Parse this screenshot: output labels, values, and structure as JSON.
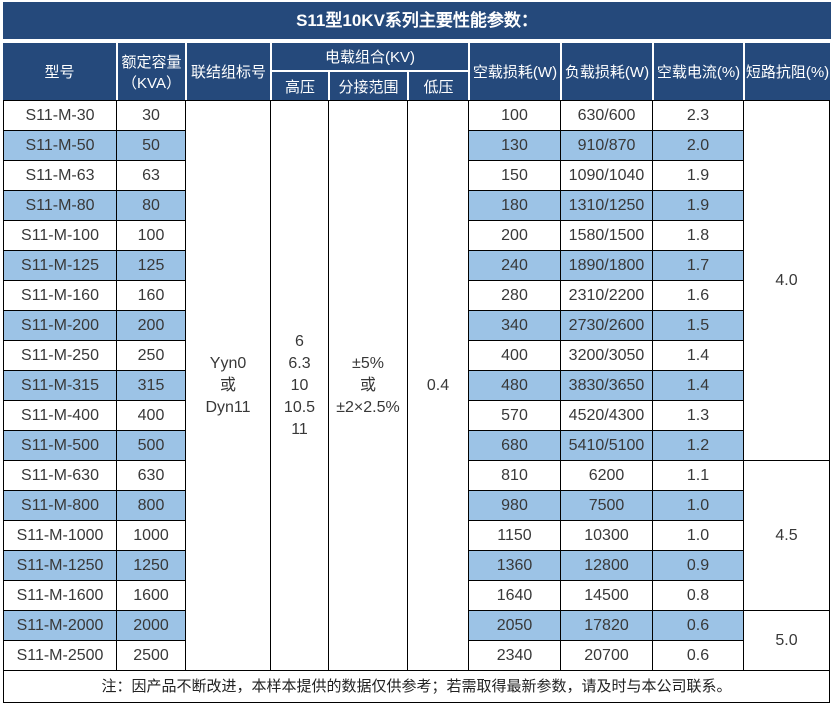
{
  "title": "S11型10KV系列主要性能参数：",
  "header": {
    "model": "型号",
    "capacity_line1": "额定容量",
    "capacity_line2": "（KVA）",
    "connection": "联结组标号",
    "load_combo": "电载组合(KV)",
    "hv": "高压",
    "tap_range": "分接范围",
    "lv": "低压",
    "no_load_loss": "空载损耗(W)",
    "load_loss": "负载损耗(W)",
    "no_load_current": "空载电流(%)",
    "impedance": "短路抗阻(%)"
  },
  "merged": {
    "connection_lines": [
      "Yyn0",
      "或",
      "Dyn11"
    ],
    "hv_lines": [
      "6",
      "6.3",
      "10",
      "10.5",
      "11"
    ],
    "tap_lines": [
      "±5%",
      "或",
      "±2×2.5%"
    ],
    "lv_value": "0.4",
    "impedance_groups": [
      {
        "value": "4.0",
        "rows": 12
      },
      {
        "value": "4.5",
        "rows": 5
      },
      {
        "value": "5.0",
        "rows": 2
      }
    ]
  },
  "rows": [
    {
      "model": "S11-M-30",
      "capacity": "30",
      "no_load_loss": "100",
      "load_loss": "630/600",
      "no_load_current": "2.3"
    },
    {
      "model": "S11-M-50",
      "capacity": "50",
      "no_load_loss": "130",
      "load_loss": "910/870",
      "no_load_current": "2.0"
    },
    {
      "model": "S11-M-63",
      "capacity": "63",
      "no_load_loss": "150",
      "load_loss": "1090/1040",
      "no_load_current": "1.9"
    },
    {
      "model": "S11-M-80",
      "capacity": "80",
      "no_load_loss": "180",
      "load_loss": "1310/1250",
      "no_load_current": "1.9"
    },
    {
      "model": "S11-M-100",
      "capacity": "100",
      "no_load_loss": "200",
      "load_loss": "1580/1500",
      "no_load_current": "1.8"
    },
    {
      "model": "S11-M-125",
      "capacity": "125",
      "no_load_loss": "240",
      "load_loss": "1890/1800",
      "no_load_current": "1.7"
    },
    {
      "model": "S11-M-160",
      "capacity": "160",
      "no_load_loss": "280",
      "load_loss": "2310/2200",
      "no_load_current": "1.6"
    },
    {
      "model": "S11-M-200",
      "capacity": "200",
      "no_load_loss": "340",
      "load_loss": "2730/2600",
      "no_load_current": "1.5"
    },
    {
      "model": "S11-M-250",
      "capacity": "250",
      "no_load_loss": "400",
      "load_loss": "3200/3050",
      "no_load_current": "1.4"
    },
    {
      "model": "S11-M-315",
      "capacity": "315",
      "no_load_loss": "480",
      "load_loss": "3830/3650",
      "no_load_current": "1.4"
    },
    {
      "model": "S11-M-400",
      "capacity": "400",
      "no_load_loss": "570",
      "load_loss": "4520/4300",
      "no_load_current": "1.3"
    },
    {
      "model": "S11-M-500",
      "capacity": "500",
      "no_load_loss": "680",
      "load_loss": "5410/5100",
      "no_load_current": "1.2"
    },
    {
      "model": "S11-M-630",
      "capacity": "630",
      "no_load_loss": "810",
      "load_loss": "6200",
      "no_load_current": "1.1"
    },
    {
      "model": "S11-M-800",
      "capacity": "800",
      "no_load_loss": "980",
      "load_loss": "7500",
      "no_load_current": "1.0"
    },
    {
      "model": "S11-M-1000",
      "capacity": "1000",
      "no_load_loss": "1150",
      "load_loss": "10300",
      "no_load_current": "1.0"
    },
    {
      "model": "S11-M-1250",
      "capacity": "1250",
      "no_load_loss": "1360",
      "load_loss": "12800",
      "no_load_current": "0.9"
    },
    {
      "model": "S11-M-1600",
      "capacity": "1600",
      "no_load_loss": "1640",
      "load_loss": "14500",
      "no_load_current": "0.8"
    },
    {
      "model": "S11-M-2000",
      "capacity": "2000",
      "no_load_loss": "2050",
      "load_loss": "17820",
      "no_load_current": "0.6"
    },
    {
      "model": "S11-M-2500",
      "capacity": "2500",
      "no_load_loss": "2340",
      "load_loss": "20700",
      "no_load_current": "0.6"
    }
  ],
  "note": "注：因产品不断改进，本样本提供的数据仅供参考；若需取得最新参数，请及时与本公司联系。",
  "colors": {
    "header_navy": "#25497B",
    "stripe_blue": "#9CC3E6",
    "border_black": "#000000"
  }
}
